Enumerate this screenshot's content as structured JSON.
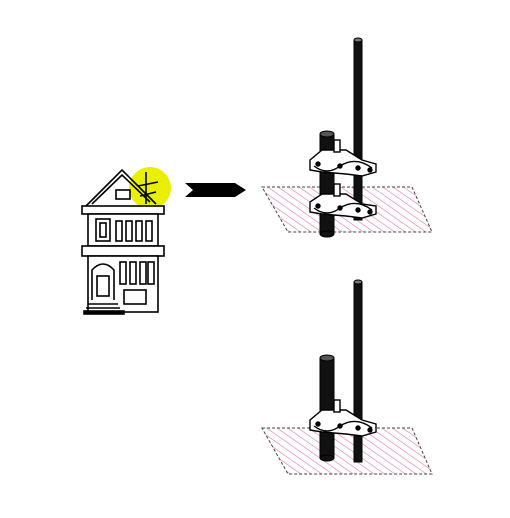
{
  "diagram": {
    "colors": {
      "background": "#ffffff",
      "line": "#000000",
      "highlight": "#e8f000",
      "hatch": "#e07aa0",
      "hatch_border": "#444444"
    },
    "icons": {
      "house": "house-icon",
      "highlight": "highlight-circle-icon",
      "arrow": "right-arrow-icon",
      "assembly_top": "mast-clamp-assembly-two-clamps-icon",
      "assembly_bottom": "mast-clamp-assembly-one-clamp-icon"
    }
  }
}
